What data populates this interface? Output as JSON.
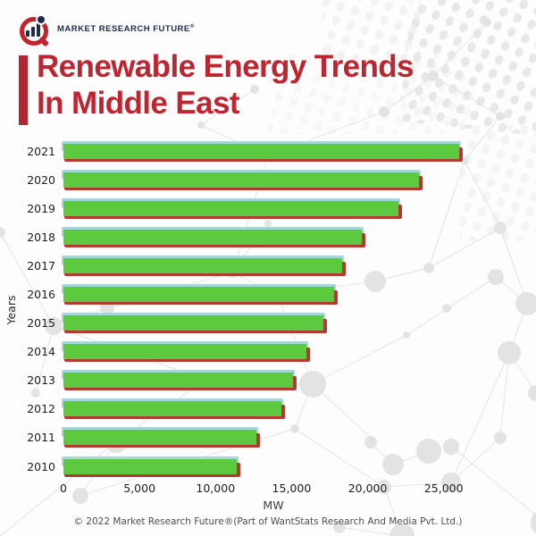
{
  "logo": {
    "brand": "MARKET RESEARCH FUTURE",
    "registered": "®"
  },
  "title": {
    "line1": "Renewable Energy Trends",
    "line2": "In Middle East"
  },
  "chart_data": {
    "type": "bar",
    "orientation": "horizontal",
    "title": "Renewable Energy Trends In Middle East",
    "categories": [
      "2021",
      "2020",
      "2019",
      "2018",
      "2017",
      "2016",
      "2015",
      "2014",
      "2013",
      "2012",
      "2011",
      "2010"
    ],
    "values": [
      26000,
      23400,
      22000,
      19600,
      18300,
      17800,
      17100,
      16000,
      15100,
      14300,
      12700,
      11400
    ],
    "unit": "MW",
    "xlabel": "MW",
    "ylabel": "Years",
    "xlim": [
      0,
      27600
    ],
    "xticks": [
      0,
      5000,
      10000,
      15000,
      20000,
      25000
    ],
    "xtick_labels": [
      "0",
      "5,000",
      "10,000",
      "15,000",
      "20,000",
      "25,000"
    ],
    "grid": false,
    "legend": null,
    "bar_color": "#5cc940",
    "bar_top_edge_color": "#a5d8da",
    "bar_shadow_color": "#b13a31"
  },
  "footer": {
    "copyright": "© 2022 Market Research Future®(Part of WantStats Research And Media Pvt. Ltd.)"
  },
  "colors": {
    "title_red": "#bd2531",
    "accent_bar_red": "#b02732",
    "logo_navy": "#1f2b4d",
    "logo_red": "#c3242b",
    "background": "#fdfdfd"
  }
}
